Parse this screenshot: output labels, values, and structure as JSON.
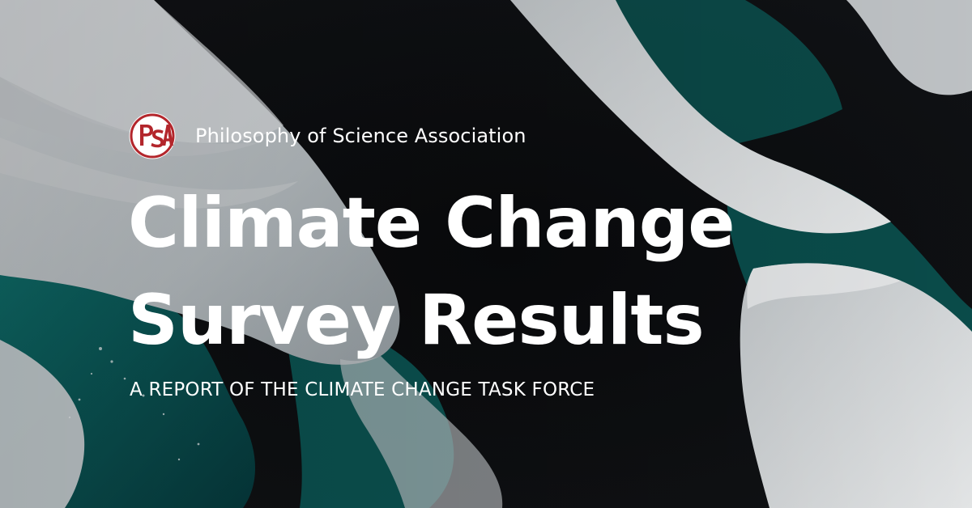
{
  "organization": {
    "logo_text": "PSA",
    "name": "Philosophy of Science Association"
  },
  "headline": {
    "line1": "Climate Change",
    "line2": "Survey Results"
  },
  "subtitle": "A REPORT OF THE CLIMATE CHANGE TASK FORCE",
  "colors": {
    "logo_red": "#b3262c",
    "text": "#ffffff",
    "ice": "#d9dde0",
    "water_teal": "#0b5756",
    "dark_water": "#0b0c0e"
  },
  "background": {
    "scene": "aerial ice and teal water",
    "icon": "ice-landscape-icon"
  }
}
